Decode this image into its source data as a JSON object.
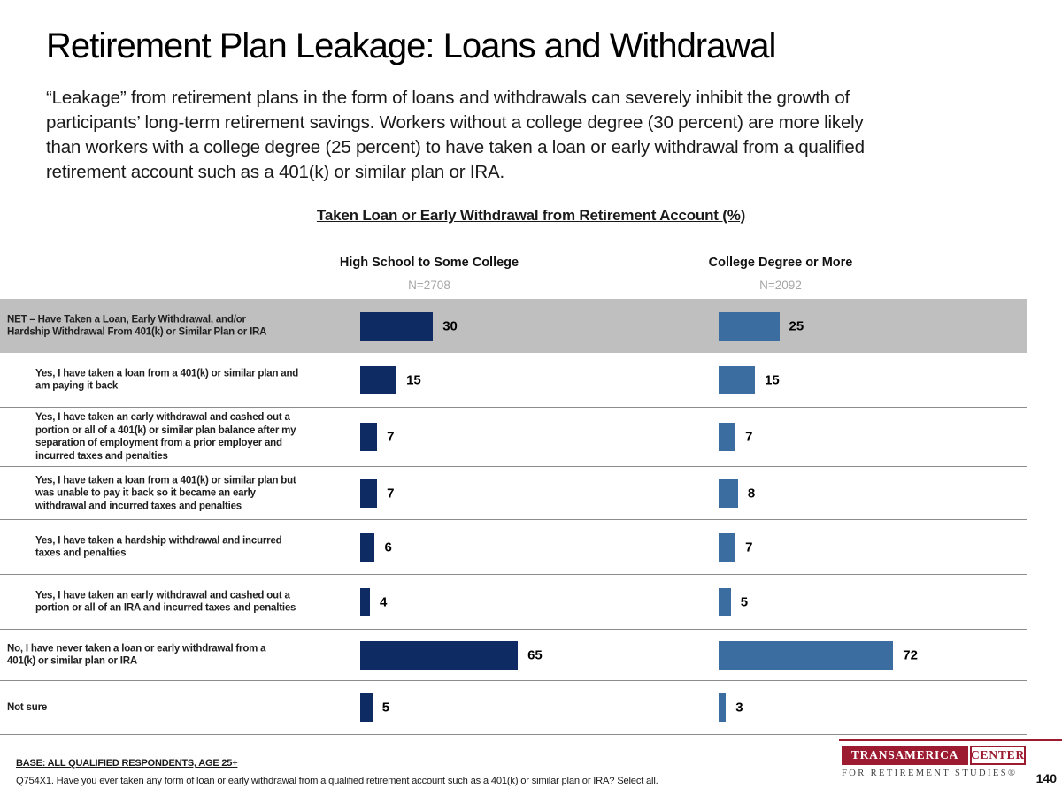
{
  "page": {
    "title": "Retirement Plan Leakage: Loans and Withdrawal",
    "intro": "“Leakage” from retirement plans in the form of loans and withdrawals can severely inhibit the growth of\nparticipants’ long-term retirement savings. Workers without a college degree (30 percent) are more likely\nthan workers with a college degree (25 percent) to have taken a loan or early withdrawal from a qualified\nretirement account such as a 401(k) or similar plan or IRA.",
    "page_number": "140"
  },
  "chart": {
    "title": "Taken Loan or Early Withdrawal from Retirement Account (%)",
    "columns": [
      {
        "header": "High School to Some College",
        "n": "N=2708"
      },
      {
        "header": "College Degree or More",
        "n": "N=2092"
      }
    ]
  },
  "chart_data": {
    "type": "bar",
    "orientation": "horizontal",
    "title": "Taken Loan or Early Withdrawal from Retirement Account (%)",
    "unit": "percent",
    "xlim": [
      0,
      100
    ],
    "categories": [
      "NET – Have Taken a Loan, Early Withdrawal, and/or\nHardship Withdrawal From 401(k) or Similar Plan or IRA",
      "Yes, I have taken a loan from a 401(k) or similar plan and\nam paying it back",
      "Yes, I have taken an early withdrawal and cashed out a\nportion or all of a 401(k) or similar plan balance after my\nseparation of employment from a prior employer and\nincurred taxes and penalties",
      "Yes, I have taken a loan from a 401(k) or similar plan but\nwas unable to pay it back so it became an early\nwithdrawal and incurred taxes and penalties",
      "Yes, I have taken a hardship withdrawal and incurred\ntaxes and penalties",
      "Yes, I have taken an early withdrawal and cashed out a\nportion or all of an IRA and incurred taxes and penalties",
      "No, I have never taken a loan or early withdrawal from a\n401(k) or similar plan or IRA",
      "Not sure"
    ],
    "series": [
      {
        "name": "High School to Some College",
        "n_label": "N=2708",
        "values": [
          30,
          15,
          7,
          7,
          6,
          4,
          65,
          5
        ],
        "color": "#0F2B64"
      },
      {
        "name": "College Degree or More",
        "n_label": "N=2092",
        "values": [
          25,
          15,
          7,
          8,
          7,
          5,
          72,
          3
        ],
        "color": "#3B6DA0"
      }
    ],
    "net_row": 0,
    "indented_rows": [
      1,
      2,
      3,
      4,
      5
    ]
  },
  "footer": {
    "base": "BASE: ALL QUALIFIED RESPONDENTS, AGE 25+",
    "question": "Q754X1. Have you ever taken any form of loan or early withdrawal from a qualified retirement account such as a 401(k) or similar plan or IRA? Select all."
  },
  "logo": {
    "brand": "TRANSAMERICA",
    "brand2": "CENTER",
    "tagline": "FOR RETIREMENT STUDIES®"
  },
  "colors": {
    "bar_dark": "#0F2B64",
    "bar_light": "#3B6DA0",
    "net_band": "#BFBFBF",
    "divider": "#8C8C8C",
    "brand_red": "#9C1B31",
    "muted_gray": "#A6A6A6"
  }
}
